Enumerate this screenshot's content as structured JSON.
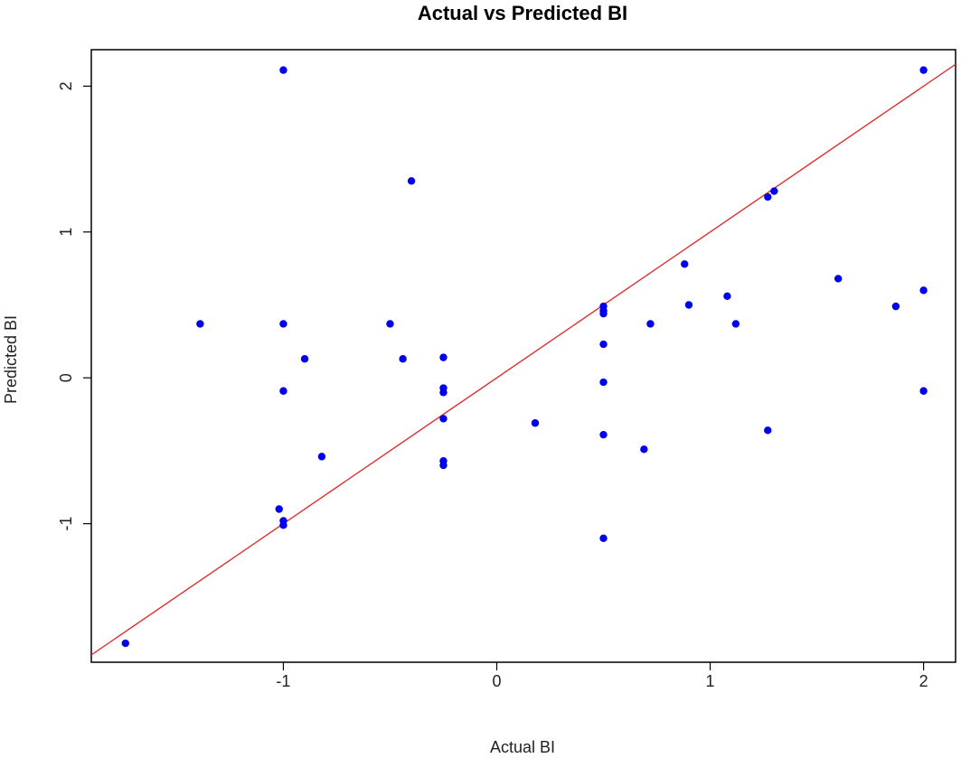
{
  "chart_data": {
    "type": "scatter",
    "title": "Actual vs Predicted BI",
    "xlabel": "Actual BI",
    "ylabel": "Predicted BI",
    "xlim": [
      -1.9,
      2.15
    ],
    "ylim": [
      -1.95,
      2.25
    ],
    "x_ticks": [
      -1,
      0,
      1,
      2
    ],
    "y_ticks": [
      -1,
      0,
      1,
      2
    ],
    "x_tick_labels": [
      "-1",
      "0",
      "1",
      "2"
    ],
    "y_tick_labels": [
      "-1",
      "0",
      "1",
      "2"
    ],
    "grid": false,
    "point_color": "#0000ee",
    "line_color": "#e03030",
    "reference_line": {
      "slope": 1,
      "intercept": 0
    },
    "points": [
      {
        "x": -1.0,
        "y": 2.11
      },
      {
        "x": -0.4,
        "y": 1.35
      },
      {
        "x": -1.39,
        "y": 0.37
      },
      {
        "x": -1.0,
        "y": 0.37
      },
      {
        "x": -0.5,
        "y": 0.37
      },
      {
        "x": -0.9,
        "y": 0.13
      },
      {
        "x": -0.44,
        "y": 0.13
      },
      {
        "x": -0.25,
        "y": 0.14
      },
      {
        "x": -1.0,
        "y": -0.09
      },
      {
        "x": -0.25,
        "y": -0.07
      },
      {
        "x": -0.25,
        "y": -0.1
      },
      {
        "x": -0.25,
        "y": -0.28
      },
      {
        "x": -0.82,
        "y": -0.54
      },
      {
        "x": -0.25,
        "y": -0.57
      },
      {
        "x": -0.25,
        "y": -0.6
      },
      {
        "x": -1.02,
        "y": -0.9
      },
      {
        "x": -1.0,
        "y": -0.98
      },
      {
        "x": -1.0,
        "y": -1.01
      },
      {
        "x": -1.74,
        "y": -1.82
      },
      {
        "x": 0.18,
        "y": -0.31
      },
      {
        "x": 0.5,
        "y": 0.49
      },
      {
        "x": 0.5,
        "y": 0.46
      },
      {
        "x": 0.5,
        "y": 0.44
      },
      {
        "x": 0.5,
        "y": 0.23
      },
      {
        "x": 0.5,
        "y": -0.03
      },
      {
        "x": 0.5,
        "y": -0.39
      },
      {
        "x": 0.5,
        "y": -1.1
      },
      {
        "x": 0.69,
        "y": -0.49
      },
      {
        "x": 0.72,
        "y": 0.37
      },
      {
        "x": 0.88,
        "y": 0.78
      },
      {
        "x": 0.9,
        "y": 0.5
      },
      {
        "x": 1.08,
        "y": 0.56
      },
      {
        "x": 1.12,
        "y": 0.37
      },
      {
        "x": 1.27,
        "y": 1.24
      },
      {
        "x": 1.3,
        "y": 1.28
      },
      {
        "x": 1.27,
        "y": -0.36
      },
      {
        "x": 1.6,
        "y": 0.68
      },
      {
        "x": 1.87,
        "y": 0.49
      },
      {
        "x": 2.0,
        "y": 2.11
      },
      {
        "x": 2.0,
        "y": 0.6
      },
      {
        "x": 2.0,
        "y": -0.09
      }
    ]
  }
}
